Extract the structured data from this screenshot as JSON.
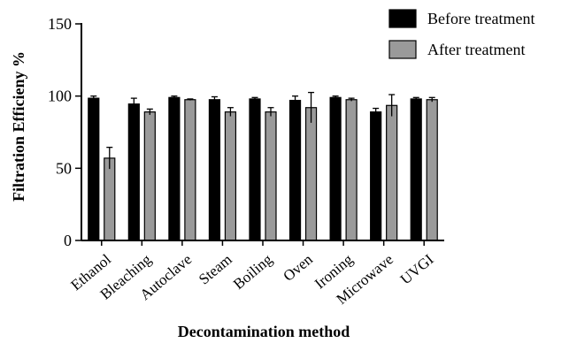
{
  "chart_data": {
    "type": "bar",
    "xlabel": "Decontamination method",
    "ylabel": "Filtration Efficieny %",
    "ylim": [
      0,
      150
    ],
    "yticks": [
      0,
      50,
      100,
      150
    ],
    "categories": [
      "Ethanol",
      "Bleaching",
      "Autoclave",
      "Steam",
      "Boiling",
      "Oven",
      "Ironing",
      "Microwave",
      "UVGI"
    ],
    "series": [
      {
        "name": "Before treatment",
        "color": "#000000",
        "values": [
          98.5,
          94.5,
          99,
          97.5,
          98,
          97,
          99,
          89,
          98
        ],
        "errors": [
          1.5,
          4,
          1,
          2,
          1,
          3,
          1,
          2.5,
          1
        ]
      },
      {
        "name": "After treatment",
        "color": "#9a9a9a",
        "values": [
          57,
          89,
          97.5,
          89,
          89,
          92,
          97.5,
          93.5,
          97.5
        ],
        "errors": [
          7.5,
          2,
          0.5,
          3,
          3,
          10.5,
          1,
          7.5,
          1.5
        ]
      }
    ],
    "legend_position": "top-right",
    "grid": false
  }
}
